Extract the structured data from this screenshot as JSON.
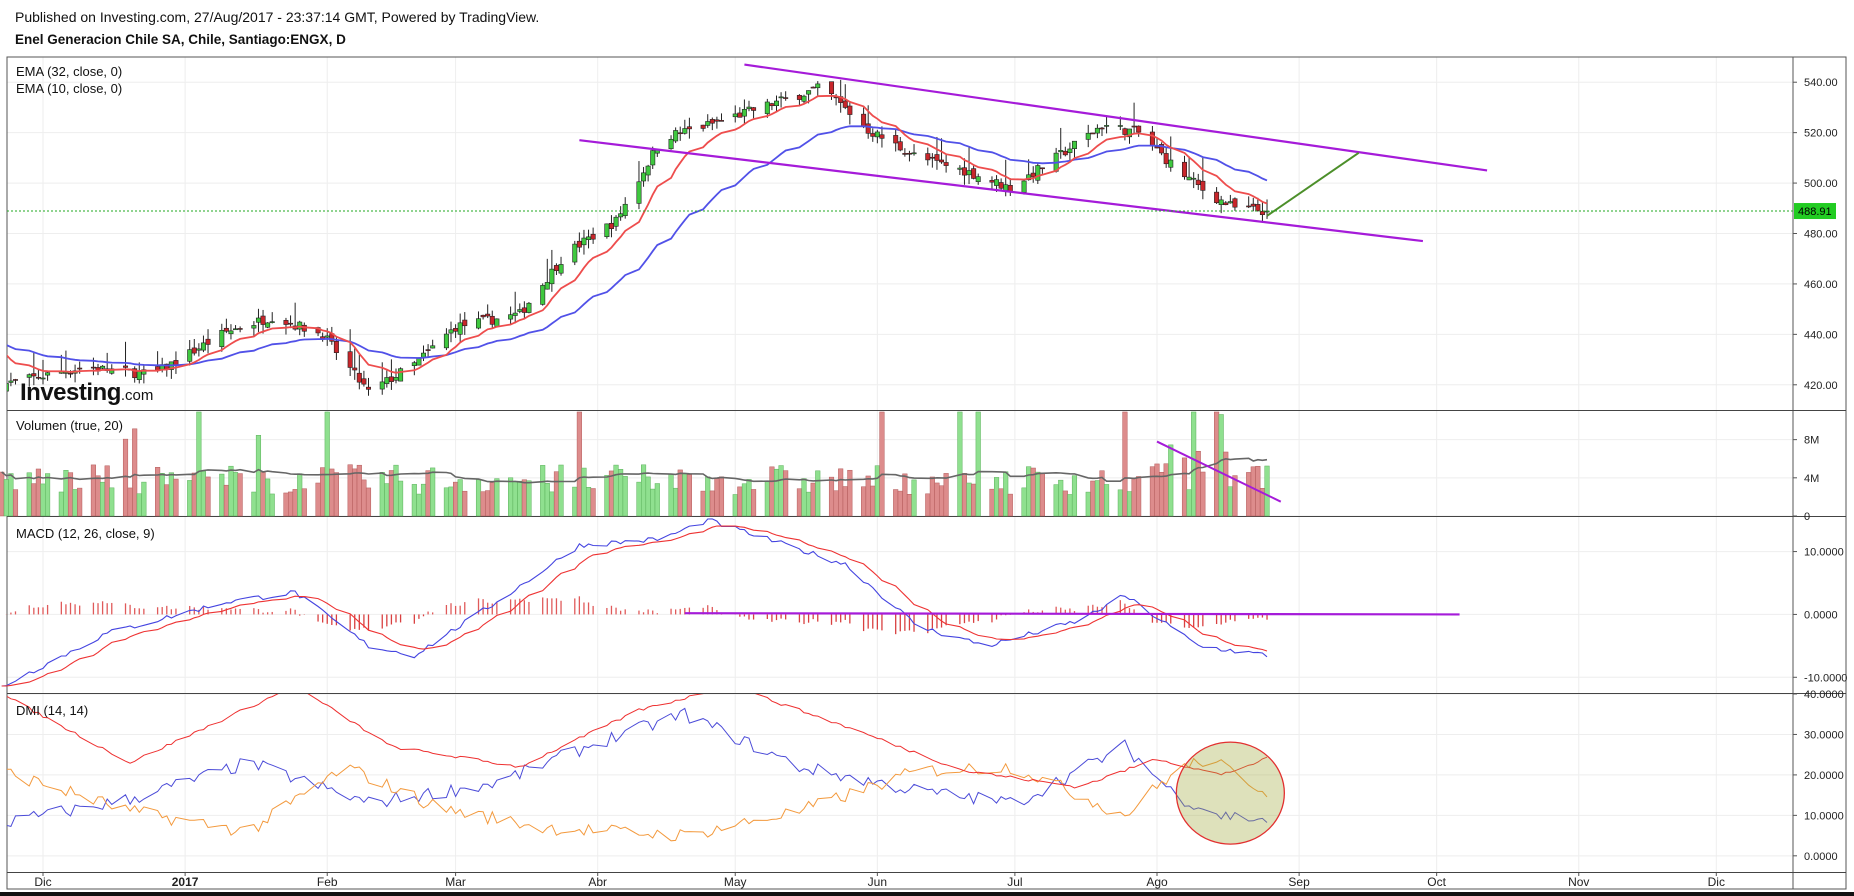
{
  "header": {
    "published": "Published on Investing.com, 27/Aug/2017 - 23:37:14 GMT, Powered by TradingView.",
    "symbol": "Enel Generacion Chile SA, Chile, Santiago:ENGX, D"
  },
  "logo": {
    "main": "Investing",
    "suffix": ".com"
  },
  "colors": {
    "up": "#3fc83f",
    "down": "#c8262b",
    "ema32": "#5151e8",
    "ema10": "#ee4d4d",
    "trendline": "#a51bd9",
    "projection": "#4c8f2a",
    "macd": "#4444e0",
    "signal": "#ee3333",
    "plusdi": "#4b4bd8",
    "minusdi": "#f39a3e",
    "adx": "#ee3030",
    "volavg": "#666666",
    "last_price_bg": "#22cc22"
  },
  "chart_data": [
    {
      "type": "candlestick",
      "panel": "price",
      "indicators": [
        "EMA (32, close, 0)",
        "EMA (10, close, 0)"
      ],
      "ylim": [
        410,
        550
      ],
      "yticks": [
        "540.00",
        "520.00",
        "500.00",
        "480.00",
        "460.00",
        "440.00",
        "420.00"
      ],
      "ytick_values": [
        540,
        520,
        500,
        480,
        460,
        440,
        420
      ],
      "last_price": "488.91",
      "last_value": 488.91,
      "date_range": [
        "2016-11-22",
        "2017-08-25"
      ],
      "approx_close_anchors": [
        [
          "2016-11-22",
          420
        ],
        [
          "2016-12-10",
          427
        ],
        [
          "2016-12-25",
          424
        ],
        [
          "2017-01-10",
          441
        ],
        [
          "2017-01-20",
          447
        ],
        [
          "2017-01-31",
          440
        ],
        [
          "2017-02-10",
          417
        ],
        [
          "2017-02-20",
          428
        ],
        [
          "2017-03-01",
          443
        ],
        [
          "2017-03-15",
          448
        ],
        [
          "2017-03-25",
          472
        ],
        [
          "2017-04-05",
          485
        ],
        [
          "2017-04-15",
          518
        ],
        [
          "2017-04-25",
          523
        ],
        [
          "2017-05-10",
          532
        ],
        [
          "2017-05-20",
          538
        ],
        [
          "2017-05-30",
          521
        ],
        [
          "2017-06-10",
          510
        ],
        [
          "2017-06-20",
          505
        ],
        [
          "2017-06-30",
          498
        ],
        [
          "2017-07-10",
          510
        ],
        [
          "2017-07-20",
          523
        ],
        [
          "2017-07-28",
          520
        ],
        [
          "2017-08-05",
          506
        ],
        [
          "2017-08-12",
          496
        ],
        [
          "2017-08-18",
          490
        ],
        [
          "2017-08-25",
          488.91
        ]
      ],
      "drawings": {
        "upper_channel": [
          [
            "2017-05-03",
            547
          ],
          [
            "2017-10-12",
            505
          ]
        ],
        "lower_channel": [
          [
            "2017-03-28",
            517
          ],
          [
            "2017-09-28",
            477
          ]
        ],
        "projection": [
          [
            "2017-08-25",
            487
          ],
          [
            "2017-09-14",
            512
          ]
        ],
        "last_price_line": 488.91
      }
    },
    {
      "type": "bar",
      "panel": "volume",
      "indicators": [
        "Volumen (true, 20)"
      ],
      "ylim": [
        0,
        11000000
      ],
      "yticks": [
        "8M",
        "4M",
        "0"
      ],
      "ytick_values": [
        8000000,
        4000000,
        0
      ],
      "drawings": {
        "trendline": [
          [
            "2017-08-01",
            7800000
          ],
          [
            "2017-08-28",
            1500000
          ]
        ]
      }
    },
    {
      "type": "line",
      "panel": "macd",
      "indicators": [
        "MACD (12, 26, close, 9)"
      ],
      "ylim": [
        -12.5,
        15.5
      ],
      "yticks": [
        "10.0000",
        "0.0000",
        "-10.0000"
      ],
      "ytick_values": [
        10,
        0,
        -10
      ],
      "approx_macd_anchors": [
        [
          "2016-11-22",
          -11.5
        ],
        [
          "2016-12-15",
          -3
        ],
        [
          "2017-01-10",
          2
        ],
        [
          "2017-01-25",
          3.5
        ],
        [
          "2017-02-10",
          -5
        ],
        [
          "2017-02-20",
          -6.5
        ],
        [
          "2017-03-10",
          2
        ],
        [
          "2017-03-28",
          11
        ],
        [
          "2017-04-15",
          12
        ],
        [
          "2017-04-25",
          15
        ],
        [
          "2017-05-10",
          11.5
        ],
        [
          "2017-05-25",
          8
        ],
        [
          "2017-06-10",
          -2
        ],
        [
          "2017-06-25",
          -5
        ],
        [
          "2017-07-15",
          -1
        ],
        [
          "2017-07-25",
          3
        ],
        [
          "2017-08-10",
          -5
        ],
        [
          "2017-08-25",
          -6.5
        ]
      ],
      "drawings": {
        "zero_line": [
          [
            "2017-04-20",
            0.2
          ],
          [
            "2017-10-06",
            0
          ]
        ]
      }
    },
    {
      "type": "line",
      "panel": "dmi",
      "indicators": [
        "DMI (14, 14)"
      ],
      "ylim": [
        -4,
        40
      ],
      "yticks": [
        "40.0000",
        "30.0000",
        "20.0000",
        "10.0000",
        "0.0000"
      ],
      "ytick_values": [
        40,
        30,
        20,
        10,
        0
      ],
      "series": [
        {
          "key": "plus_di",
          "anchors": [
            [
              "2016-11-22",
              8
            ],
            [
              "2016-12-20",
              14
            ],
            [
              "2017-01-15",
              23
            ],
            [
              "2017-02-10",
              13
            ],
            [
              "2017-03-10",
              18
            ],
            [
              "2017-04-01",
              28
            ],
            [
              "2017-04-20",
              35
            ],
            [
              "2017-05-15",
              22
            ],
            [
              "2017-06-10",
              16
            ],
            [
              "2017-07-01",
              13
            ],
            [
              "2017-07-25",
              27
            ],
            [
              "2017-08-05",
              15
            ],
            [
              "2017-08-15",
              10
            ],
            [
              "2017-08-25",
              9
            ]
          ]
        },
        {
          "key": "minus_di",
          "anchors": [
            [
              "2016-11-22",
              21
            ],
            [
              "2016-12-20",
              11
            ],
            [
              "2017-01-15",
              6
            ],
            [
              "2017-02-05",
              22
            ],
            [
              "2017-02-25",
              12
            ],
            [
              "2017-03-20",
              7
            ],
            [
              "2017-04-20",
              5
            ],
            [
              "2017-05-15",
              11
            ],
            [
              "2017-06-10",
              21
            ],
            [
              "2017-07-01",
              22
            ],
            [
              "2017-07-25",
              10
            ],
            [
              "2017-08-05",
              21
            ],
            [
              "2017-08-12",
              24
            ],
            [
              "2017-08-25",
              16
            ]
          ]
        },
        {
          "key": "adx",
          "anchors": [
            [
              "2016-11-22",
              40
            ],
            [
              "2016-12-20",
              23
            ],
            [
              "2017-01-25",
              42
            ],
            [
              "2017-02-15",
              27
            ],
            [
              "2017-03-15",
              22
            ],
            [
              "2017-04-10",
              36
            ],
            [
              "2017-04-30",
              42
            ],
            [
              "2017-05-25",
              32
            ],
            [
              "2017-06-20",
              21
            ],
            [
              "2017-07-15",
              17
            ],
            [
              "2017-08-01",
              24
            ],
            [
              "2017-08-15",
              20
            ],
            [
              "2017-08-25",
              24
            ]
          ]
        }
      ],
      "drawings": {
        "highlight_ellipse_center": [
          "2017-08-17",
          15.5
        ]
      }
    }
  ],
  "x_axis": {
    "labels": [
      {
        "text": "Dic",
        "date": "2016-12-01",
        "bold": false
      },
      {
        "text": "2017",
        "date": "2017-01-01",
        "bold": true
      },
      {
        "text": "Feb",
        "date": "2017-02-01",
        "bold": false
      },
      {
        "text": "Mar",
        "date": "2017-03-01",
        "bold": false
      },
      {
        "text": "Abr",
        "date": "2017-04-01",
        "bold": false
      },
      {
        "text": "May",
        "date": "2017-05-01",
        "bold": false
      },
      {
        "text": "Jun",
        "date": "2017-06-01",
        "bold": false
      },
      {
        "text": "Jul",
        "date": "2017-07-01",
        "bold": false
      },
      {
        "text": "Ago",
        "date": "2017-08-01",
        "bold": false
      },
      {
        "text": "Sep",
        "date": "2017-09-01",
        "bold": false
      },
      {
        "text": "Oct",
        "date": "2017-10-01",
        "bold": false
      },
      {
        "text": "Nov",
        "date": "2017-11-01",
        "bold": false
      },
      {
        "text": "Dic",
        "date": "2017-12-01",
        "bold": false
      }
    ]
  }
}
